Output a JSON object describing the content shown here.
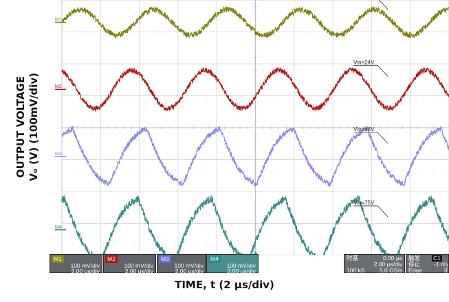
{
  "chart_data": {
    "type": "line",
    "ylabel": "OUTPUT VOLTAGE\nVₒ (V) (100mV/div)",
    "xlabel": "TIME, t (2 µs/div)",
    "grid": true,
    "x_divisions": 10,
    "y_divisions": 8,
    "time_per_div_us": 2,
    "volts_per_div_mV": 100,
    "series": [
      {
        "name": "Vin=21V",
        "channel": "M1",
        "color": "#7f7f10",
        "amplitude_mV": 40,
        "period_us": 3.8,
        "phase": 0.0,
        "noise_mV": 18,
        "shape": "sine",
        "center_div": 3.3
      },
      {
        "name": "Vin=24V",
        "channel": "M2",
        "color": "#b01818",
        "amplitude_mV": 60,
        "period_us": 3.8,
        "phase": 1.9,
        "noise_mV": 16,
        "shape": "sine",
        "center_div": 1.2
      },
      {
        "name": "Vin=48V",
        "channel": "M3",
        "color": "#8a8ae8",
        "amplitude_mV": 125,
        "period_us": 3.8,
        "phase": 2.2,
        "noise_mV": 18,
        "shape": "triangle",
        "center_div": -0.9
      },
      {
        "name": "Vin=75V",
        "channel": "M4",
        "color": "#3a8a8a",
        "amplitude_mV": 140,
        "period_us": 3.8,
        "phase": 2.9,
        "noise_mV": 24,
        "shape": "triangle",
        "center_div": -3.2
      }
    ]
  },
  "status_bar": {
    "channels": [
      {
        "tag": "M1",
        "tag_color": "#8a8a10",
        "volts_div": "100 mV/div",
        "time_div": "2.00 µs/div"
      },
      {
        "tag": "M2",
        "tag_color": "#b01818",
        "volts_div": "100 mV/div",
        "time_div": "2.00 µs/div"
      },
      {
        "tag": "M3",
        "tag_color": "#6a6adf",
        "volts_div": "100 mV/div",
        "time_div": "2.00 µs/div"
      },
      {
        "tag": "M4",
        "tag_color": "#2f8a8a",
        "volts_div": "100 mV/div",
        "time_div": "2.00 µs/div"
      }
    ],
    "timebase": {
      "label": "时基",
      "delay": "0.00 µs",
      "scale": "2.00 µs/div",
      "points": "100 kS",
      "rate": "5.0 GS/s"
    },
    "trigger": {
      "label": "触发",
      "source": "C1",
      "state": "停止",
      "level": "-1 mV",
      "type": "Edge",
      "slope": "正"
    }
  }
}
